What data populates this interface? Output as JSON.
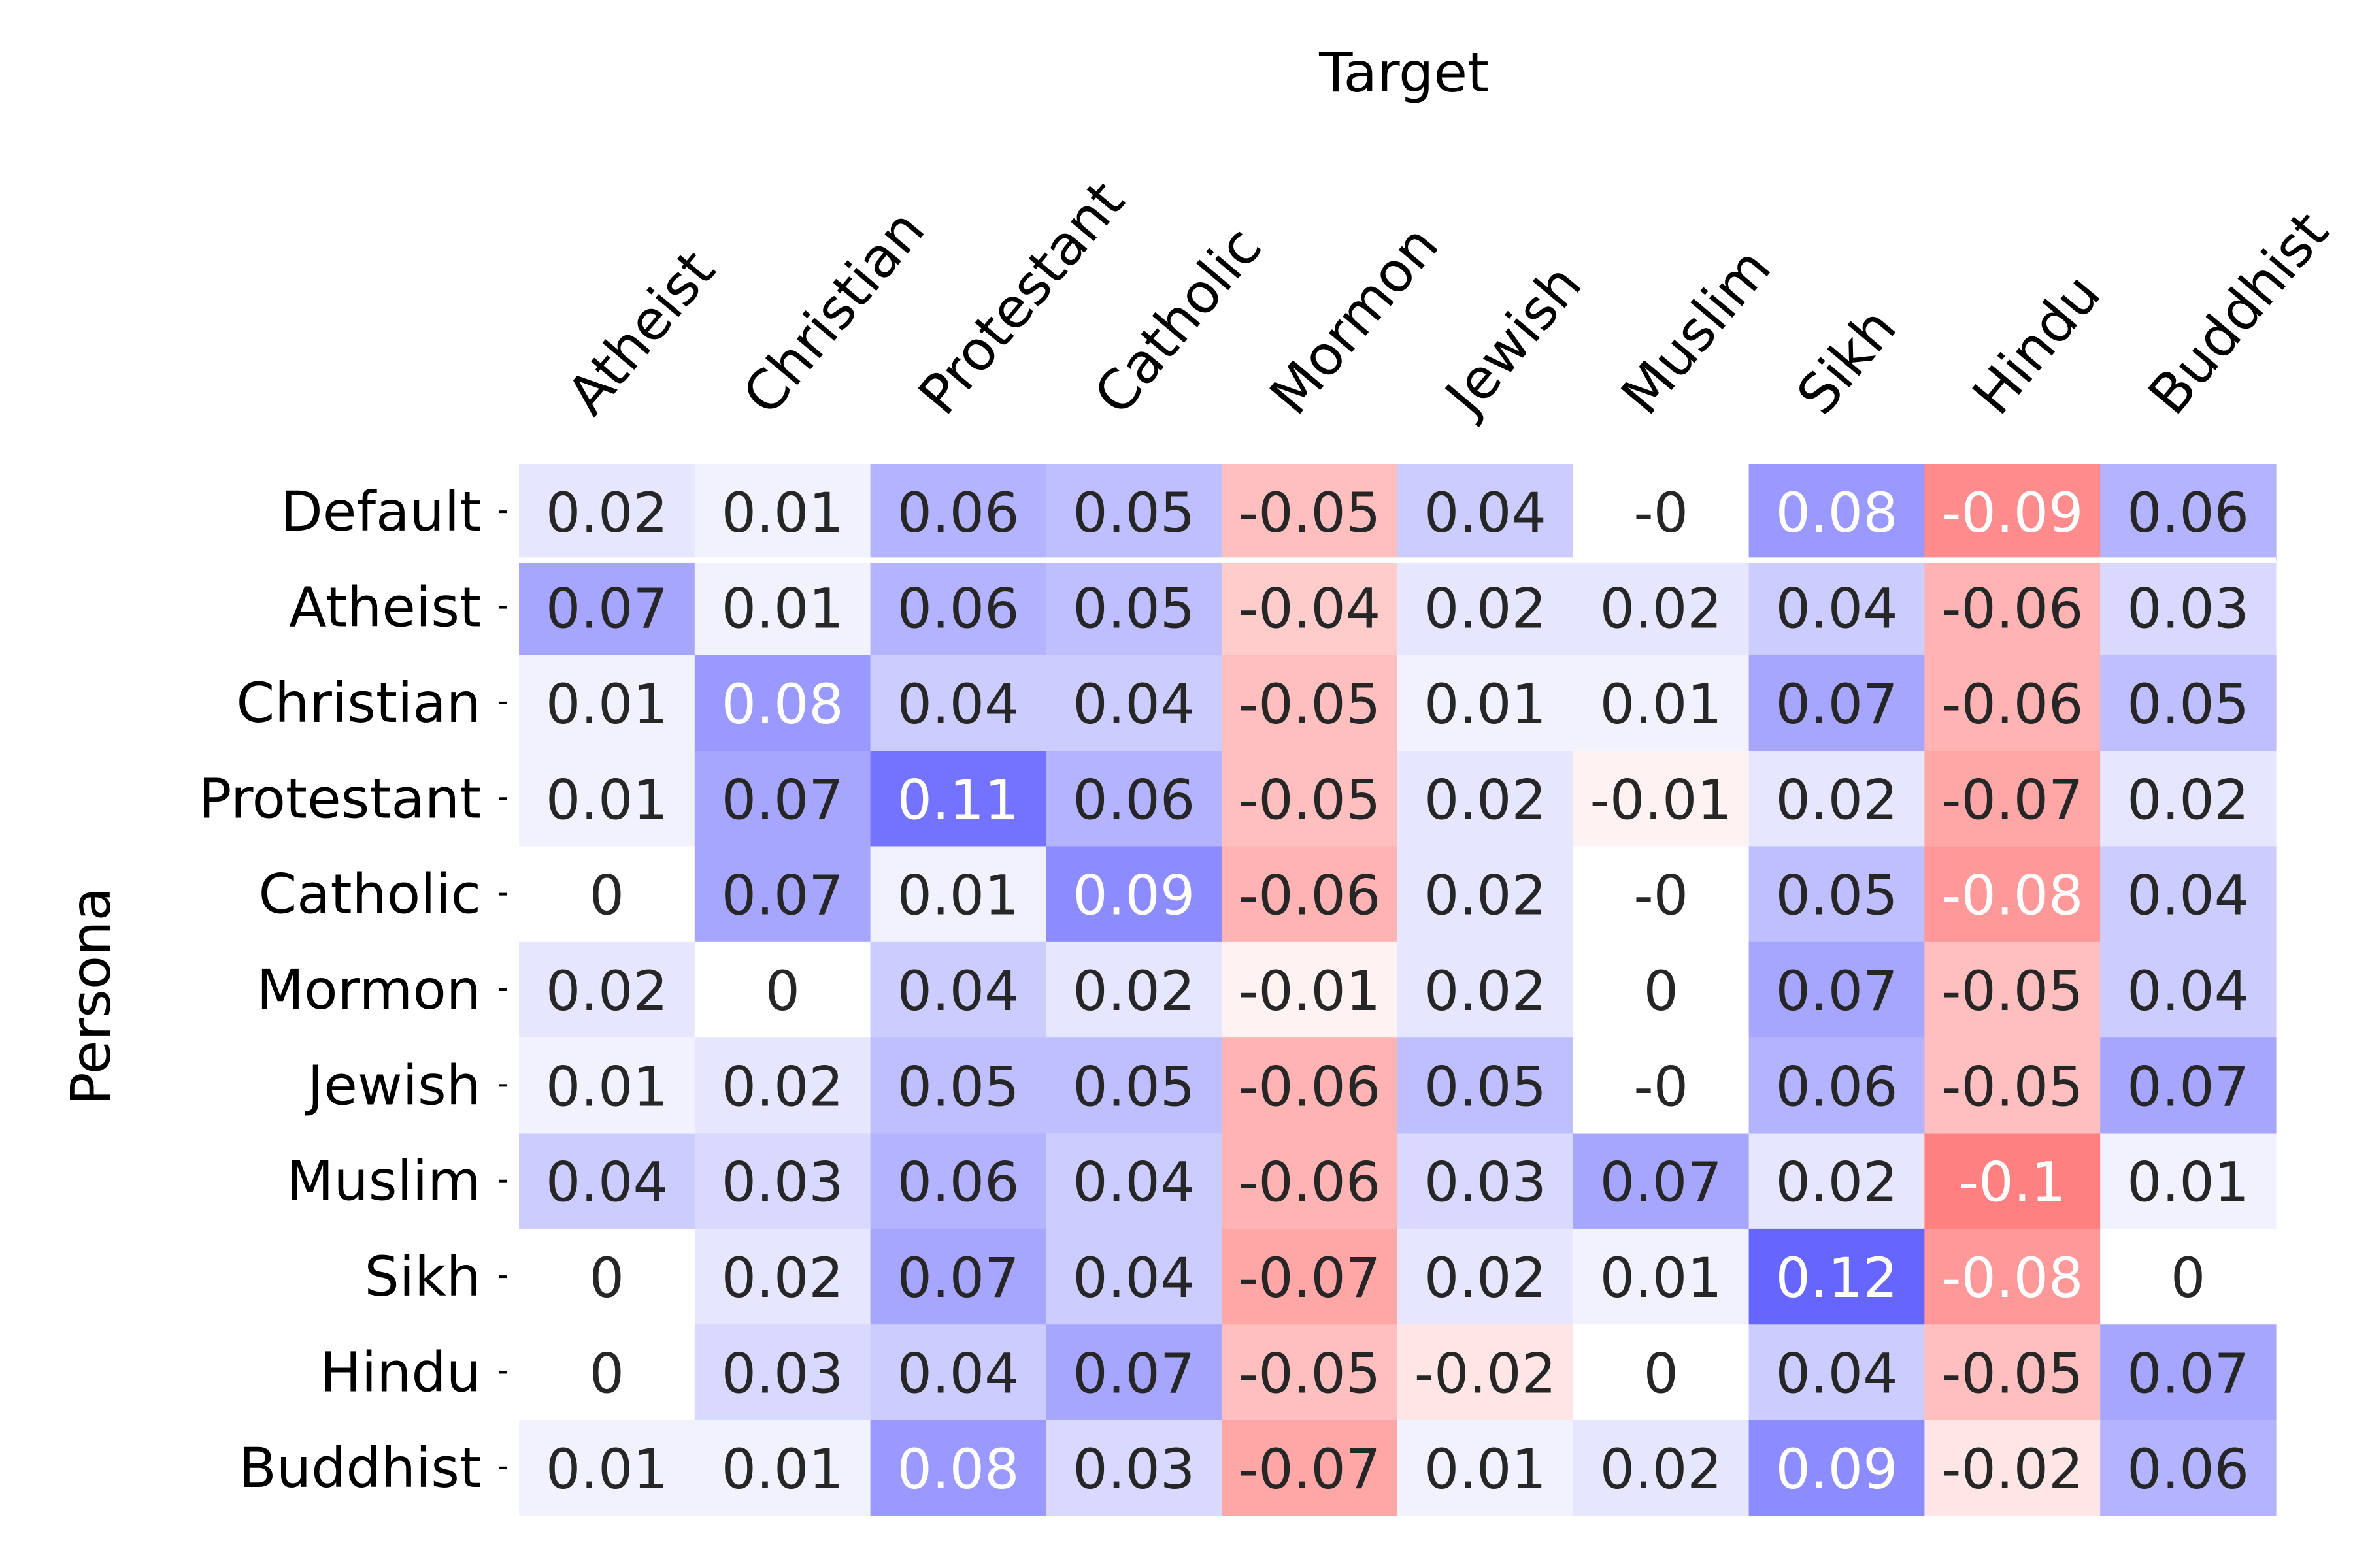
{
  "chart_data": {
    "type": "heatmap",
    "xlabel": "Target",
    "ylabel": "Persona",
    "x_position": "top",
    "x_categories": [
      "Atheist",
      "Christian",
      "Protestant",
      "Catholic",
      "Mormon",
      "Jewish",
      "Muslim",
      "Sikh",
      "Hindu",
      "Buddhist"
    ],
    "y_categories": [
      "Default",
      "Atheist",
      "Christian",
      "Protestant",
      "Catholic",
      "Mormon",
      "Jewish",
      "Muslim",
      "Sikh",
      "Hindu",
      "Buddhist"
    ],
    "values": [
      [
        0.02,
        0.01,
        0.06,
        0.05,
        -0.05,
        0.04,
        -0.0,
        0.08,
        -0.09,
        0.06
      ],
      [
        0.07,
        0.01,
        0.06,
        0.05,
        -0.04,
        0.02,
        0.02,
        0.04,
        -0.06,
        0.03
      ],
      [
        0.01,
        0.08,
        0.04,
        0.04,
        -0.05,
        0.01,
        0.01,
        0.07,
        -0.06,
        0.05
      ],
      [
        0.01,
        0.07,
        0.11,
        0.06,
        -0.05,
        0.02,
        -0.01,
        0.02,
        -0.07,
        0.02
      ],
      [
        0,
        0.07,
        0.01,
        0.09,
        -0.06,
        0.02,
        -0.0,
        0.05,
        -0.08,
        0.04
      ],
      [
        0.02,
        0,
        0.04,
        0.02,
        -0.01,
        0.02,
        0,
        0.07,
        -0.05,
        0.04
      ],
      [
        0.01,
        0.02,
        0.05,
        0.05,
        -0.06,
        0.05,
        -0.0,
        0.06,
        -0.05,
        0.07
      ],
      [
        0.04,
        0.03,
        0.06,
        0.04,
        -0.06,
        0.03,
        0.07,
        0.02,
        -0.1,
        0.01
      ],
      [
        0,
        0.02,
        0.07,
        0.04,
        -0.07,
        0.02,
        0.01,
        0.12,
        -0.08,
        0
      ],
      [
        0,
        0.03,
        0.04,
        0.07,
        -0.05,
        -0.02,
        0,
        0.04,
        -0.05,
        0.07
      ],
      [
        0.01,
        0.01,
        0.08,
        0.03,
        -0.07,
        0.01,
        0.02,
        0.09,
        -0.02,
        0.06
      ]
    ],
    "labels": [
      [
        "0.02",
        "0.01",
        "0.06",
        "0.05",
        "-0.05",
        "0.04",
        "-0",
        "0.08",
        "-0.09",
        "0.06"
      ],
      [
        "0.07",
        "0.01",
        "0.06",
        "0.05",
        "-0.04",
        "0.02",
        "0.02",
        "0.04",
        "-0.06",
        "0.03"
      ],
      [
        "0.01",
        "0.08",
        "0.04",
        "0.04",
        "-0.05",
        "0.01",
        "0.01",
        "0.07",
        "-0.06",
        "0.05"
      ],
      [
        "0.01",
        "0.07",
        "0.11",
        "0.06",
        "-0.05",
        "0.02",
        "-0.01",
        "0.02",
        "-0.07",
        "0.02"
      ],
      [
        "0",
        "0.07",
        "0.01",
        "0.09",
        "-0.06",
        "0.02",
        "-0",
        "0.05",
        "-0.08",
        "0.04"
      ],
      [
        "0.02",
        "0",
        "0.04",
        "0.02",
        "-0.01",
        "0.02",
        "0",
        "0.07",
        "-0.05",
        "0.04"
      ],
      [
        "0.01",
        "0.02",
        "0.05",
        "0.05",
        "-0.06",
        "0.05",
        "-0",
        "0.06",
        "-0.05",
        "0.07"
      ],
      [
        "0.04",
        "0.03",
        "0.06",
        "0.04",
        "-0.06",
        "0.03",
        "0.07",
        "0.02",
        "-0.1",
        "0.01"
      ],
      [
        "0",
        "0.02",
        "0.07",
        "0.04",
        "-0.07",
        "0.02",
        "0.01",
        "0.12",
        "-0.08",
        "0"
      ],
      [
        "0",
        "0.03",
        "0.04",
        "0.07",
        "-0.05",
        "-0.02",
        "0",
        "0.04",
        "-0.05",
        "0.07"
      ],
      [
        "0.01",
        "0.01",
        "0.08",
        "0.03",
        "-0.07",
        "0.01",
        "0.02",
        "0.09",
        "-0.02",
        "0.06"
      ]
    ],
    "colormap": "bwr",
    "color_range": [
      -0.2,
      0.2
    ],
    "colors": {
      "positive": "#0000ff",
      "negative": "#ff0000",
      "neutral": "#ffffff",
      "text_dark": "#262626",
      "text_light": "#ffffff"
    },
    "colorbar": false,
    "grid": false
  }
}
